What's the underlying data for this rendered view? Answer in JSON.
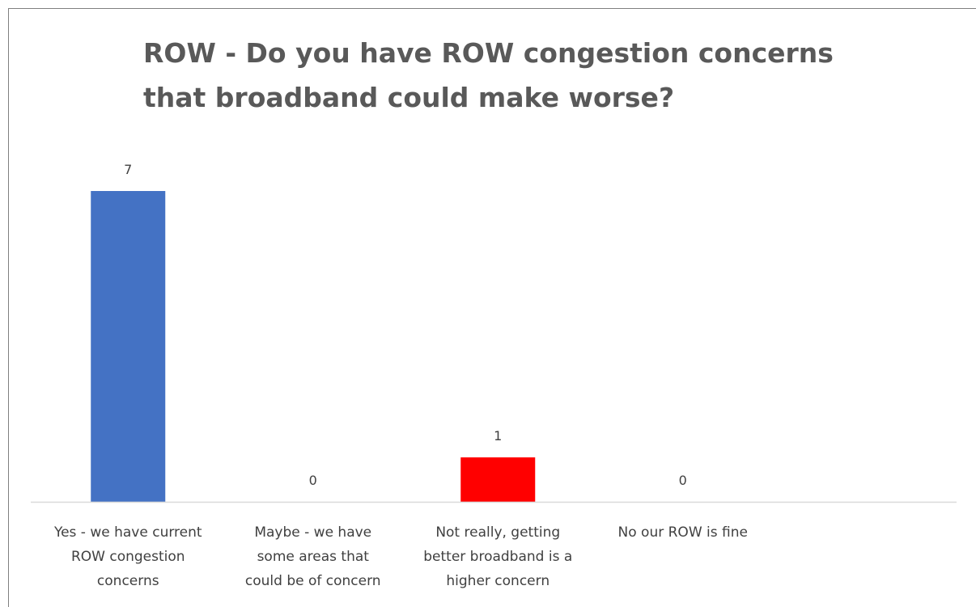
{
  "chart_data": {
    "type": "bar",
    "title_lines": [
      "ROW - Do you have ROW congestion concerns",
      "that broadband could make worse?"
    ],
    "categories": [
      [
        "Yes - we have current",
        "ROW congestion",
        "concerns"
      ],
      [
        "Maybe - we have",
        "some areas that",
        "could be of concern"
      ],
      [
        "Not really, getting",
        "better broadband is a",
        "higher concern"
      ],
      [
        "No our ROW is fine"
      ]
    ],
    "values": [
      7,
      0,
      1,
      0
    ],
    "bar_colors": [
      "#4472c4",
      "#4472c4",
      "#ff0000",
      "#4472c4"
    ],
    "data_labels": true,
    "grid": false,
    "ylim": [
      0,
      7.8
    ]
  }
}
